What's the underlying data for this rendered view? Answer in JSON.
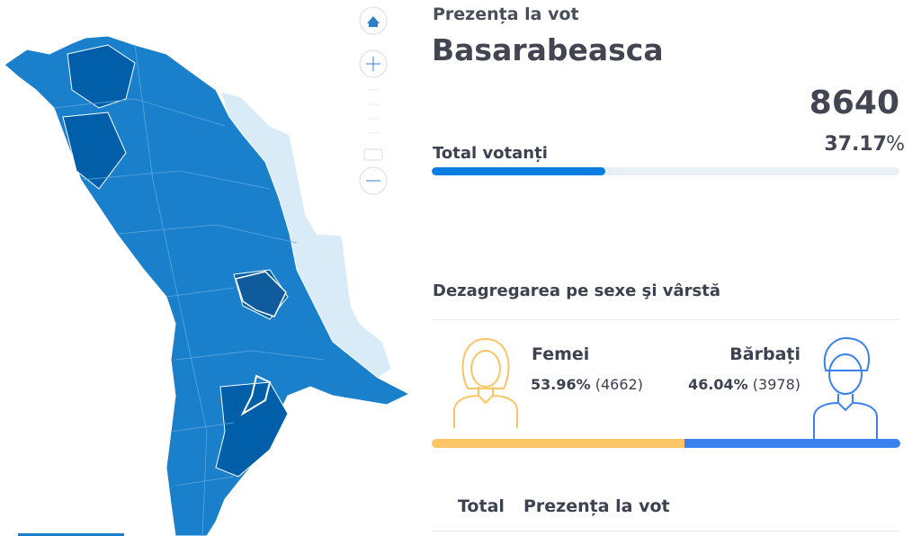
{
  "panel": {
    "section": "Prezența la vot",
    "region": "Basarabeasca",
    "total": {
      "label": "Total votanți",
      "count": "8640",
      "percent": 37.17,
      "unit": "%"
    },
    "breakdown": {
      "title": "Dezagregarea pe sexe şi vârstă",
      "groups": [
        {
          "label": "Femei",
          "percent": 53.96,
          "percent_label": "53.96%",
          "count": "(4662)"
        },
        {
          "label": "Bărbați",
          "percent": 46.04,
          "percent_label": "46.04%",
          "count": "(3978)"
        }
      ]
    },
    "table_header": [
      "Total",
      "Prezența la vot"
    ]
  }
}
